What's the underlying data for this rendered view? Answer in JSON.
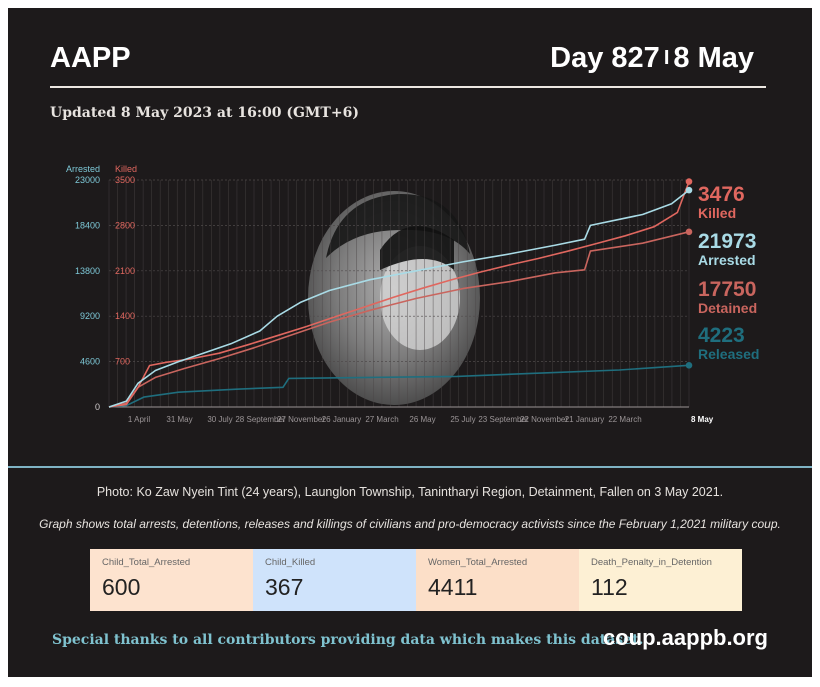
{
  "header": {
    "org": "AAPP",
    "day": "Day 827",
    "separator": "I",
    "date": "8 May",
    "updated": "Updated 8 May 2023 at 16:00 (GMT+6)"
  },
  "chart_data": {
    "type": "line",
    "left_axis": {
      "label": "Arrested",
      "ticks": [
        0,
        4600,
        9200,
        13800,
        18400,
        23000
      ],
      "range": [
        0,
        23000
      ],
      "color": "#7ec9d8"
    },
    "right_axis": {
      "label": "Killed",
      "ticks": [
        700,
        1400,
        2100,
        2800,
        3500
      ],
      "range": [
        0,
        3500
      ],
      "color": "#e0675f"
    },
    "x_ticks": [
      "1 April",
      "31 May",
      "30 July",
      "28 September",
      "27 November",
      "26 January",
      "27 March",
      "26 May",
      "25 July",
      "23 September",
      "22 November",
      "21 January",
      "22 March",
      "8 May"
    ],
    "grid": true,
    "series": [
      {
        "name": "Killed",
        "axis": "right",
        "color": "#e0675f",
        "final": "3476",
        "points": [
          [
            0,
            0
          ],
          [
            3,
            40
          ],
          [
            5,
            300
          ],
          [
            7,
            640
          ],
          [
            10,
            690
          ],
          [
            14,
            740
          ],
          [
            19,
            830
          ],
          [
            24,
            960
          ],
          [
            29,
            1100
          ],
          [
            34,
            1240
          ],
          [
            39,
            1390
          ],
          [
            44,
            1540
          ],
          [
            49,
            1690
          ],
          [
            54,
            1830
          ],
          [
            59,
            1960
          ],
          [
            64,
            2080
          ],
          [
            69,
            2190
          ],
          [
            74,
            2290
          ],
          [
            79,
            2400
          ],
          [
            84,
            2520
          ],
          [
            89,
            2640
          ],
          [
            94,
            2780
          ],
          [
            98,
            3000
          ],
          [
            100,
            3476
          ]
        ]
      },
      {
        "name": "Arrested",
        "axis": "left",
        "color": "#a9dbe6",
        "final": "21973",
        "points": [
          [
            0,
            0
          ],
          [
            3,
            600
          ],
          [
            5,
            2400
          ],
          [
            8,
            3700
          ],
          [
            12,
            4600
          ],
          [
            16,
            5400
          ],
          [
            21,
            6400
          ],
          [
            26,
            7700
          ],
          [
            29,
            9200
          ],
          [
            33,
            10600
          ],
          [
            38,
            11800
          ],
          [
            45,
            12900
          ],
          [
            53,
            13800
          ],
          [
            61,
            14700
          ],
          [
            69,
            15500
          ],
          [
            77,
            16400
          ],
          [
            82,
            17000
          ],
          [
            83,
            18400
          ],
          [
            92,
            19500
          ],
          [
            97,
            20600
          ],
          [
            100,
            21973
          ]
        ]
      },
      {
        "name": "Detained",
        "axis": "left",
        "color": "#c9655e",
        "final": "17750",
        "points": [
          [
            0,
            0
          ],
          [
            3,
            400
          ],
          [
            5,
            2000
          ],
          [
            8,
            3000
          ],
          [
            13,
            3900
          ],
          [
            19,
            4900
          ],
          [
            25,
            6000
          ],
          [
            31,
            7200
          ],
          [
            38,
            8600
          ],
          [
            45,
            9800
          ],
          [
            53,
            11000
          ],
          [
            61,
            12000
          ],
          [
            69,
            12700
          ],
          [
            77,
            13600
          ],
          [
            82,
            13900
          ],
          [
            83,
            15800
          ],
          [
            92,
            16600
          ],
          [
            100,
            17750
          ]
        ]
      },
      {
        "name": "Released",
        "axis": "left",
        "color": "#1f6e7e",
        "final": "4223",
        "points": [
          [
            0,
            0
          ],
          [
            3,
            150
          ],
          [
            6,
            1000
          ],
          [
            12,
            1500
          ],
          [
            22,
            1800
          ],
          [
            30,
            2000
          ],
          [
            31,
            2900
          ],
          [
            45,
            3000
          ],
          [
            60,
            3100
          ],
          [
            75,
            3450
          ],
          [
            88,
            3750
          ],
          [
            100,
            4223
          ]
        ]
      }
    ]
  },
  "photo": {
    "caption": "Photo: Ko Zaw Nyein Tint (24 years), Launglon Township, Tanintharyi Region, Detainment, Fallen on 3 May 2021."
  },
  "graph_note": "Graph shows total arrests, detentions, releases and killings of civilians and pro-democracy activists since the February 1,2021 military coup.",
  "stats": [
    {
      "label": "Child_Total_Arrested",
      "value": "600",
      "color": "#fde3cf"
    },
    {
      "label": "Child_Killed",
      "value": "367",
      "color": "#cfe3fb"
    },
    {
      "label": "Women_Total_Arrested",
      "value": "4411",
      "color": "#fcdfc8"
    },
    {
      "label": "Death_Penalty_in_Detention",
      "value": "112",
      "color": "#fdf0d4"
    }
  ],
  "footer": {
    "thanks": "Special thanks to all contributors providing data which makes this dataset.",
    "site": "coup.aappb.org"
  }
}
